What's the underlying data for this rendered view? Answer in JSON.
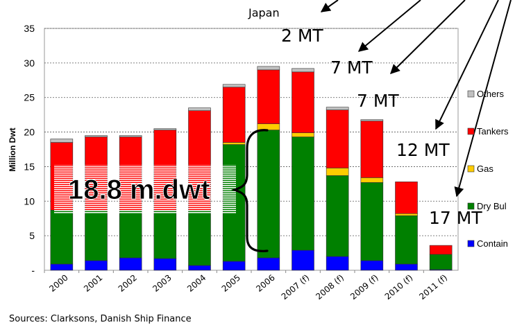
{
  "chart_data": {
    "type": "bar",
    "stacked": true,
    "categories": [
      "2000",
      "2001",
      "2002",
      "2003",
      "2004",
      "2005",
      "2006",
      "2007 (f)",
      "2008 (f)",
      "2009 (f)",
      "2010 (f)",
      "2011 (f)"
    ],
    "series": [
      {
        "name": "Container",
        "color": "#0000FF",
        "values": [
          0.9,
          1.4,
          1.8,
          1.7,
          0.7,
          1.3,
          1.8,
          2.9,
          2.0,
          1.4,
          0.9,
          0.1
        ]
      },
      {
        "name": "Dry Bulk",
        "color": "#008000",
        "values": [
          7.8,
          7.3,
          6.9,
          6.9,
          8.0,
          16.9,
          18.5,
          16.4,
          11.7,
          11.3,
          7.0,
          2.2
        ]
      },
      {
        "name": "Gas",
        "color": "#FFCC00",
        "values": [
          0.0,
          0.0,
          0.0,
          0.0,
          0.0,
          0.3,
          0.9,
          0.6,
          1.1,
          0.7,
          0.3,
          0.0
        ]
      },
      {
        "name": "Tankers",
        "color": "#FF0000",
        "values": [
          9.8,
          10.6,
          10.6,
          11.7,
          14.4,
          8.0,
          7.8,
          8.8,
          8.4,
          8.2,
          4.6,
          1.3
        ]
      },
      {
        "name": "Others",
        "color": "#C0C0C0",
        "values": [
          0.5,
          0.2,
          0.2,
          0.2,
          0.4,
          0.4,
          0.5,
          0.5,
          0.4,
          0.2,
          0.0,
          0.0
        ]
      }
    ],
    "ylabel": "Million Dwt",
    "ylim": [
      0,
      35
    ],
    "yticks": [
      0,
      5,
      10,
      15,
      20,
      25,
      30,
      35
    ],
    "ytick_labels": [
      "-",
      "5",
      "10",
      "15",
      "20",
      "25",
      "30",
      "35"
    ],
    "grid": true,
    "legend_position": "right",
    "legend_labels": [
      "Others",
      "Tankers",
      "Gas",
      "Dry Bul",
      "Contain"
    ],
    "source": "Sources: Clarksons, Danish Ship Finance",
    "overlay_text": "18.8 m.dwt",
    "annotations": [
      {
        "text": "Japan"
      },
      {
        "text": "2 MT"
      },
      {
        "text": "7 MT"
      },
      {
        "text": "7 MT"
      },
      {
        "text": "12 MT"
      },
      {
        "text": "17 MT"
      }
    ]
  }
}
